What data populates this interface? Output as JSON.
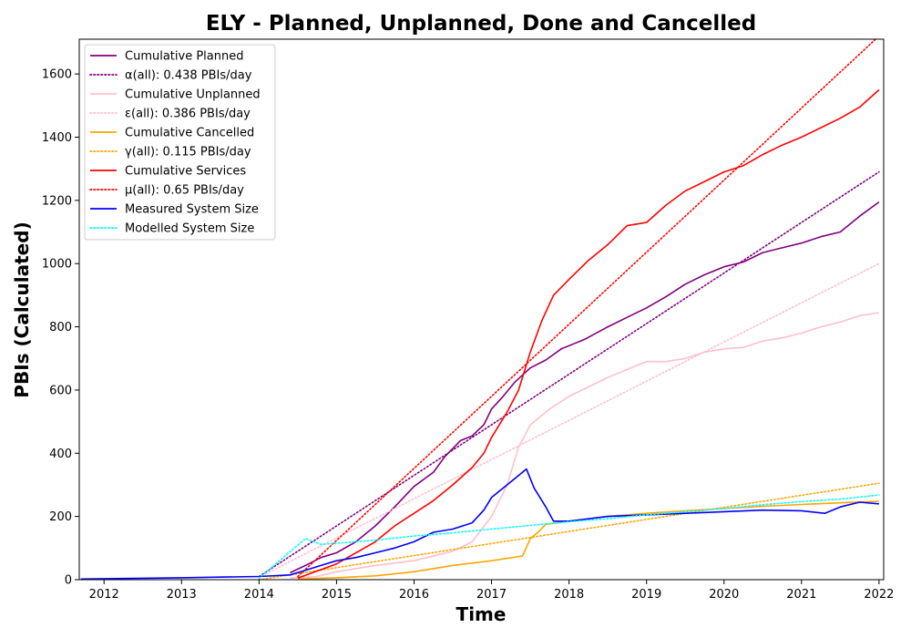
{
  "chart_data": {
    "type": "line",
    "title": "ELY - Planned, Unplanned, Done  and Cancelled",
    "xlabel": "Time",
    "ylabel": "PBIs (Calculated)",
    "xlim": [
      2011.68,
      2022.06
    ],
    "ylim": [
      0,
      1710
    ],
    "xticks": [
      "2012",
      "2013",
      "2014",
      "2015",
      "2016",
      "2017",
      "2018",
      "2019",
      "2020",
      "2021",
      "2022"
    ],
    "xtick_values": [
      2012,
      2013,
      2014,
      2015,
      2016,
      2017,
      2018,
      2019,
      2020,
      2021,
      2022
    ],
    "yticks": [
      "0",
      "200",
      "400",
      "600",
      "800",
      "1000",
      "1200",
      "1400",
      "1600"
    ],
    "ytick_values": [
      0,
      200,
      400,
      600,
      800,
      1000,
      1200,
      1400,
      1600
    ],
    "grid": false,
    "legend_position": "top-left",
    "series": [
      {
        "name": "Cumulative Planned",
        "color": "#800080",
        "style": "solid",
        "points": [
          [
            2014.4,
            22
          ],
          [
            2014.6,
            45
          ],
          [
            2014.8,
            70
          ],
          [
            2015.0,
            85
          ],
          [
            2015.25,
            120
          ],
          [
            2015.5,
            170
          ],
          [
            2015.75,
            230
          ],
          [
            2016.0,
            295
          ],
          [
            2016.25,
            340
          ],
          [
            2016.4,
            390
          ],
          [
            2016.6,
            440
          ],
          [
            2016.75,
            455
          ],
          [
            2016.9,
            490
          ],
          [
            2017.0,
            540
          ],
          [
            2017.15,
            580
          ],
          [
            2017.3,
            625
          ],
          [
            2017.5,
            670
          ],
          [
            2017.7,
            695
          ],
          [
            2017.9,
            730
          ],
          [
            2018.2,
            760
          ],
          [
            2018.5,
            800
          ],
          [
            2018.75,
            830
          ],
          [
            2019.0,
            860
          ],
          [
            2019.25,
            895
          ],
          [
            2019.5,
            935
          ],
          [
            2019.75,
            965
          ],
          [
            2020.0,
            990
          ],
          [
            2020.25,
            1005
          ],
          [
            2020.5,
            1035
          ],
          [
            2020.75,
            1050
          ],
          [
            2021.0,
            1065
          ],
          [
            2021.25,
            1085
          ],
          [
            2021.5,
            1100
          ],
          [
            2021.75,
            1150
          ],
          [
            2022.0,
            1195
          ]
        ]
      },
      {
        "name": "α(all): 0.438 PBIs/day",
        "color": "#800080",
        "style": "dotted",
        "points": [
          [
            2014.0,
            10
          ],
          [
            2022.0,
            1290
          ]
        ]
      },
      {
        "name": "Cumulative Unplanned",
        "color": "#ffc0cb",
        "style": "solid",
        "points": [
          [
            2014.4,
            5
          ],
          [
            2014.75,
            10
          ],
          [
            2015.0,
            25
          ],
          [
            2015.5,
            45
          ],
          [
            2016.0,
            60
          ],
          [
            2016.5,
            90
          ],
          [
            2016.75,
            120
          ],
          [
            2017.0,
            200
          ],
          [
            2017.2,
            300
          ],
          [
            2017.35,
            420
          ],
          [
            2017.5,
            490
          ],
          [
            2017.75,
            540
          ],
          [
            2018.0,
            580
          ],
          [
            2018.25,
            610
          ],
          [
            2018.5,
            640
          ],
          [
            2018.75,
            665
          ],
          [
            2019.0,
            690
          ],
          [
            2019.25,
            690
          ],
          [
            2019.5,
            700
          ],
          [
            2019.75,
            720
          ],
          [
            2020.0,
            730
          ],
          [
            2020.25,
            735
          ],
          [
            2020.5,
            755
          ],
          [
            2020.75,
            765
          ],
          [
            2021.0,
            780
          ],
          [
            2021.25,
            800
          ],
          [
            2021.5,
            815
          ],
          [
            2021.75,
            835
          ],
          [
            2022.0,
            845
          ]
        ]
      },
      {
        "name": "ε(all): 0.386 PBIs/day",
        "color": "#ffc0cb",
        "style": "dotted",
        "points": [
          [
            2014.0,
            8
          ],
          [
            2022.0,
            1000
          ]
        ]
      },
      {
        "name": "Cumulative Cancelled",
        "color": "#ffa500",
        "style": "solid",
        "points": [
          [
            2014.5,
            2
          ],
          [
            2015.0,
            6
          ],
          [
            2015.5,
            12
          ],
          [
            2016.0,
            25
          ],
          [
            2016.5,
            45
          ],
          [
            2017.0,
            60
          ],
          [
            2017.4,
            75
          ],
          [
            2017.5,
            130
          ],
          [
            2017.6,
            150
          ],
          [
            2017.7,
            175
          ],
          [
            2018.0,
            185
          ],
          [
            2018.5,
            200
          ],
          [
            2019.0,
            210
          ],
          [
            2019.5,
            218
          ],
          [
            2020.0,
            225
          ],
          [
            2020.5,
            232
          ],
          [
            2021.0,
            238
          ],
          [
            2021.5,
            243
          ],
          [
            2022.0,
            248
          ]
        ]
      },
      {
        "name": "γ(all): 0.115 PBIs/day",
        "color": "#ffa500",
        "style": "dotted",
        "points": [
          [
            2014.0,
            0
          ],
          [
            2022.0,
            305
          ]
        ]
      },
      {
        "name": "Cumulative Services",
        "color": "#ff0000",
        "style": "solid",
        "points": [
          [
            2014.5,
            5
          ],
          [
            2015.0,
            50
          ],
          [
            2015.5,
            120
          ],
          [
            2015.75,
            170
          ],
          [
            2016.0,
            210
          ],
          [
            2016.25,
            250
          ],
          [
            2016.5,
            300
          ],
          [
            2016.75,
            355
          ],
          [
            2016.9,
            400
          ],
          [
            2017.0,
            450
          ],
          [
            2017.2,
            530
          ],
          [
            2017.35,
            600
          ],
          [
            2017.5,
            720
          ],
          [
            2017.65,
            820
          ],
          [
            2017.8,
            900
          ],
          [
            2018.0,
            950
          ],
          [
            2018.25,
            1010
          ],
          [
            2018.5,
            1060
          ],
          [
            2018.75,
            1120
          ],
          [
            2019.0,
            1130
          ],
          [
            2019.25,
            1185
          ],
          [
            2019.5,
            1230
          ],
          [
            2019.75,
            1260
          ],
          [
            2020.0,
            1290
          ],
          [
            2020.25,
            1310
          ],
          [
            2020.5,
            1345
          ],
          [
            2020.75,
            1375
          ],
          [
            2021.0,
            1400
          ],
          [
            2021.25,
            1430
          ],
          [
            2021.5,
            1460
          ],
          [
            2021.75,
            1495
          ],
          [
            2022.0,
            1550
          ]
        ]
      },
      {
        "name": "μ(all): 0.65 PBIs/day",
        "color": "#ff0000",
        "style": "dotted",
        "points": [
          [
            2014.5,
            10
          ],
          [
            2022.0,
            1720
          ]
        ]
      },
      {
        "name": "Measured System Size",
        "color": "#0000ff",
        "style": "solid",
        "points": [
          [
            2011.7,
            2
          ],
          [
            2013.0,
            6
          ],
          [
            2014.0,
            10
          ],
          [
            2014.4,
            15
          ],
          [
            2014.6,
            30
          ],
          [
            2014.8,
            45
          ],
          [
            2015.0,
            60
          ],
          [
            2015.25,
            70
          ],
          [
            2015.5,
            85
          ],
          [
            2015.75,
            100
          ],
          [
            2016.0,
            120
          ],
          [
            2016.25,
            150
          ],
          [
            2016.5,
            160
          ],
          [
            2016.75,
            180
          ],
          [
            2016.9,
            220
          ],
          [
            2017.0,
            260
          ],
          [
            2017.2,
            300
          ],
          [
            2017.35,
            330
          ],
          [
            2017.45,
            350
          ],
          [
            2017.55,
            290
          ],
          [
            2017.7,
            230
          ],
          [
            2017.8,
            185
          ],
          [
            2018.0,
            185
          ],
          [
            2018.5,
            200
          ],
          [
            2019.0,
            205
          ],
          [
            2019.5,
            210
          ],
          [
            2020.0,
            215
          ],
          [
            2020.5,
            220
          ],
          [
            2021.0,
            218
          ],
          [
            2021.3,
            210
          ],
          [
            2021.5,
            230
          ],
          [
            2021.75,
            245
          ],
          [
            2022.0,
            240
          ]
        ]
      },
      {
        "name": "Modelled System Size",
        "color": "#00ffff",
        "style": "dotted",
        "points": [
          [
            2014.0,
            5
          ],
          [
            2014.6,
            130
          ],
          [
            2014.8,
            112
          ],
          [
            2015.0,
            115
          ],
          [
            2015.5,
            125
          ],
          [
            2016.0,
            138
          ],
          [
            2016.5,
            148
          ],
          [
            2017.0,
            160
          ],
          [
            2017.5,
            172
          ],
          [
            2018.0,
            183
          ],
          [
            2018.5,
            193
          ],
          [
            2019.0,
            205
          ],
          [
            2019.5,
            215
          ],
          [
            2020.0,
            225
          ],
          [
            2020.5,
            237
          ],
          [
            2021.0,
            247
          ],
          [
            2021.5,
            255
          ],
          [
            2022.0,
            268
          ]
        ]
      }
    ]
  }
}
